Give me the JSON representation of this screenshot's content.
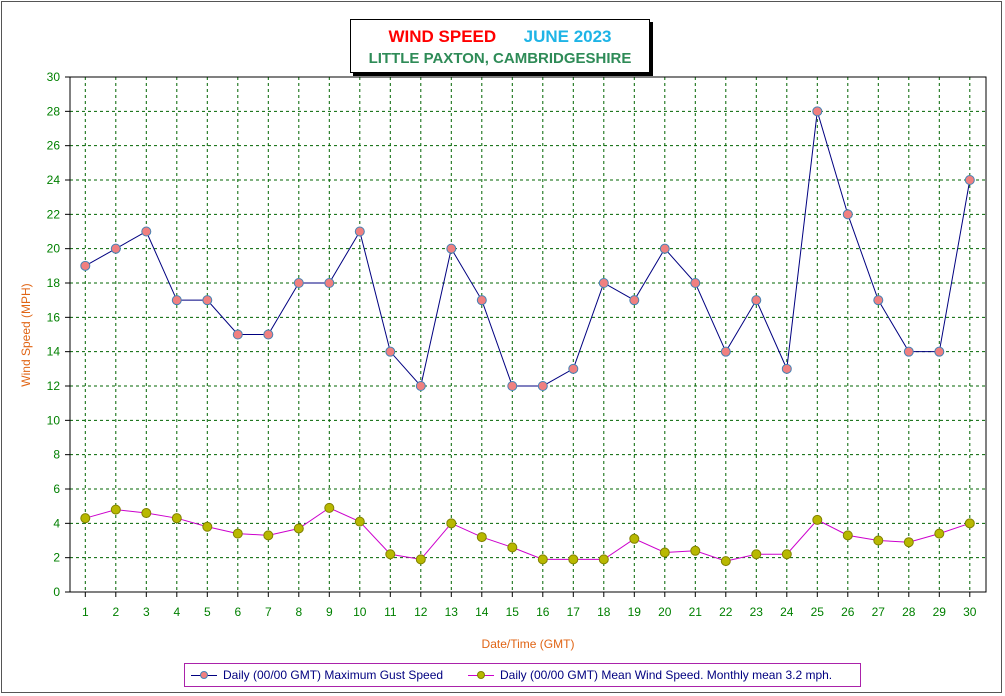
{
  "title": {
    "part1": "WIND SPEED",
    "part2": "JUNE 2023",
    "subtitle": "LITTLE PAXTON, CAMBRIDGESHIRE",
    "colors": {
      "part1": "#ff0000",
      "part2": "#1eb4e6",
      "subtitle": "#2e8b57"
    }
  },
  "chart_data": {
    "type": "line",
    "xlabel": "Date/Time (GMT)",
    "ylabel": "Wind Speed (MPH)",
    "ylim": [
      0,
      30
    ],
    "yticks": [
      0,
      2,
      4,
      6,
      8,
      10,
      12,
      14,
      16,
      18,
      20,
      22,
      24,
      26,
      28,
      30
    ],
    "x": [
      1,
      2,
      3,
      4,
      5,
      6,
      7,
      8,
      9,
      10,
      11,
      12,
      13,
      14,
      15,
      16,
      17,
      18,
      19,
      20,
      21,
      22,
      23,
      24,
      25,
      26,
      27,
      28,
      29,
      30
    ],
    "grid": true,
    "legend_position": "bottom",
    "series": [
      {
        "name": "Daily (00/00 GMT) Maximum Gust Speed",
        "line_color": "#000080",
        "marker_color": "#f08080",
        "values": [
          19,
          20,
          21,
          17,
          17,
          15,
          15,
          18,
          18,
          21,
          14,
          12,
          20,
          17,
          12,
          12,
          13,
          18,
          17,
          20,
          18,
          14,
          17,
          13,
          28,
          22,
          17,
          14,
          14,
          24
        ]
      },
      {
        "name": "Daily (00/00 GMT) Mean Wind Speed. Monthly mean 3.2 mph.",
        "line_color": "#cc00cc",
        "marker_color": "#b8b800",
        "values": [
          4.3,
          4.8,
          4.6,
          4.3,
          3.8,
          3.4,
          3.3,
          3.7,
          4.9,
          4.1,
          2.2,
          1.9,
          4.0,
          3.2,
          2.6,
          1.9,
          1.9,
          1.9,
          3.1,
          2.3,
          2.4,
          1.8,
          2.2,
          2.2,
          4.2,
          3.3,
          3.0,
          2.9,
          3.4,
          4.0
        ]
      }
    ],
    "axis_colors": {
      "tick_labels": "#008000",
      "axis_titles": "#e06414",
      "grid": "#006400"
    }
  }
}
